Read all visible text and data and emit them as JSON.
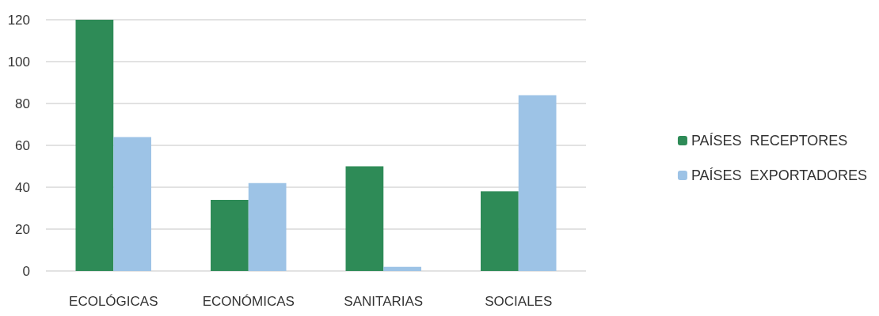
{
  "chart_data": {
    "type": "bar",
    "categories": [
      "ECOLÓGICAS",
      "ECONÓMICAS",
      "SANITARIAS",
      "SOCIALES"
    ],
    "series": [
      {
        "name": "PAÍSES  RECEPTORES",
        "color": "#2e8b57",
        "values": [
          120,
          34,
          50,
          38
        ]
      },
      {
        "name": "PAÍSES  EXPORTADORES",
        "color": "#9dc3e6",
        "values": [
          64,
          42,
          2,
          84
        ]
      }
    ],
    "ylim": [
      0,
      120
    ],
    "yticks": [
      0,
      20,
      40,
      60,
      80,
      100,
      120
    ],
    "grid": "y",
    "legend": "right"
  }
}
